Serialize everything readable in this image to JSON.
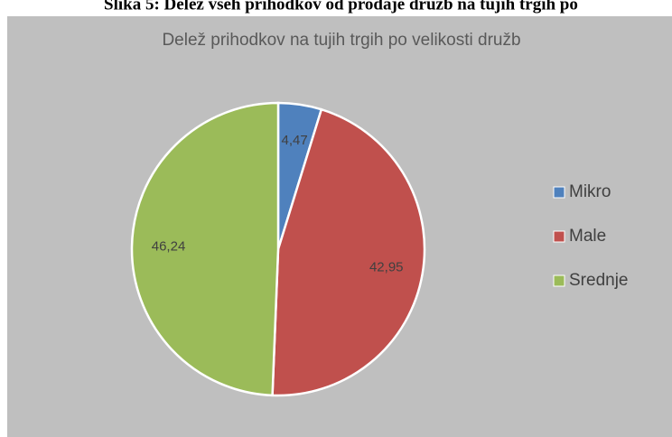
{
  "caption": "Slika 5: Delež vseh prihodkov od prodaje družb na tujih trgih po",
  "chart_data": {
    "type": "pie",
    "title": "Delež prihodkov  na tujih trgih po velikosti družb",
    "categories": [
      "Mikro",
      "Male",
      "Srednje"
    ],
    "values": [
      4.47,
      42.95,
      46.24
    ],
    "value_labels": [
      "4,47",
      "42,95",
      "46,24"
    ],
    "colors": [
      "#4f81bd",
      "#c0504d",
      "#9bbb59"
    ],
    "legend": "right"
  }
}
